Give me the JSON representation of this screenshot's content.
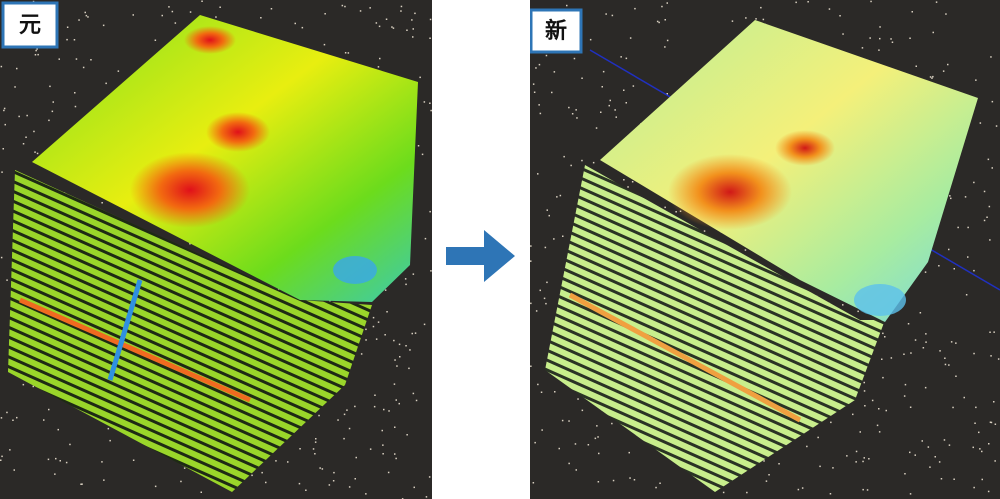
{
  "panels": [
    {
      "label": "元"
    },
    {
      "label": "新"
    }
  ]
}
